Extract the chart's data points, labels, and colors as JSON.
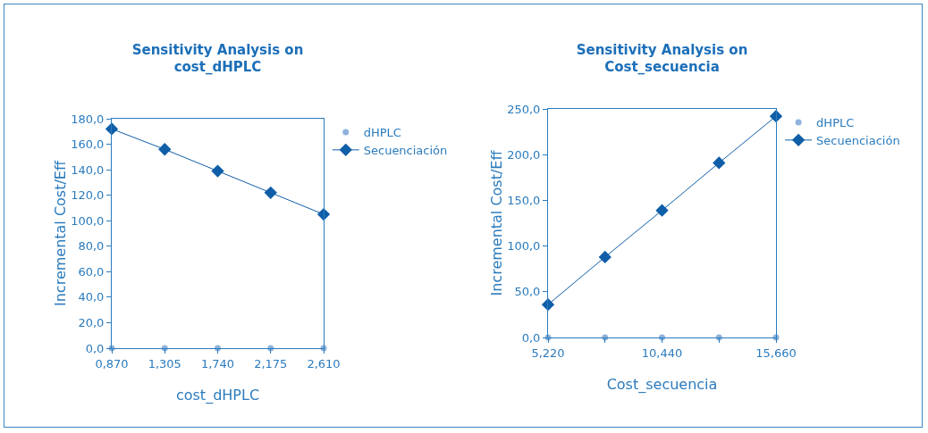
{
  "chart_data": [
    {
      "type": "line",
      "title": "Sensitivity Analysis on\ncost_dHPLC",
      "xlabel": "cost_dHPLC",
      "ylabel": "Incremental Cost/Eff",
      "x": [
        0.87,
        1.305,
        1.74,
        2.175,
        2.61
      ],
      "series": [
        {
          "name": "dHPLC",
          "type": "scatter",
          "marker": "circle",
          "color": "#8fb3dc",
          "values": [
            0,
            0,
            0,
            0,
            0
          ]
        },
        {
          "name": "Secuenciación",
          "marker": "diamond",
          "color": "#0f5ea8",
          "values": [
            172,
            156,
            139,
            122,
            105
          ]
        }
      ],
      "xlim": [
        0.87,
        2.61
      ],
      "xticks": [
        {
          "value": 0.87,
          "label": "0,870"
        },
        {
          "value": 1.305,
          "label": "1,305"
        },
        {
          "value": 1.74,
          "label": "1,740"
        },
        {
          "value": 2.175,
          "label": "2,175"
        },
        {
          "value": 2.61,
          "label": "2,610"
        }
      ],
      "ylim": [
        0,
        180
      ],
      "yticks": [
        {
          "value": 0,
          "label": "0,0"
        },
        {
          "value": 20,
          "label": "20,0"
        },
        {
          "value": 40,
          "label": "40,0"
        },
        {
          "value": 60,
          "label": "60,0"
        },
        {
          "value": 80,
          "label": "80,0"
        },
        {
          "value": 100,
          "label": "100,0"
        },
        {
          "value": 120,
          "label": "120,0"
        },
        {
          "value": 140,
          "label": "140,0"
        },
        {
          "value": 160,
          "label": "160,0"
        },
        {
          "value": 180,
          "label": "180,0"
        }
      ],
      "grid": false,
      "legend": "top right"
    },
    {
      "type": "line",
      "title": "Sensitivity Analysis on\nCost_secuencia",
      "xlabel": "Cost_secuencia",
      "ylabel": "Incremental Cost/Eff",
      "x": [
        5.22,
        7.83,
        10.44,
        13.05,
        15.66
      ],
      "series": [
        {
          "name": "dHPLC",
          "type": "scatter",
          "marker": "circle",
          "color": "#8fb3dc",
          "values": [
            0,
            0,
            0,
            0,
            0
          ]
        },
        {
          "name": "Secuenciación",
          "marker": "diamond",
          "color": "#0f5ea8",
          "values": [
            36,
            88,
            139,
            191,
            242
          ]
        }
      ],
      "xlim": [
        5.22,
        15.66
      ],
      "xticks": [
        {
          "value": 5.22,
          "label": "5,220"
        },
        {
          "value": 7.83,
          "label": null
        },
        {
          "value": 10.44,
          "label": "10,440"
        },
        {
          "value": 13.05,
          "label": null
        },
        {
          "value": 15.66,
          "label": "15,660"
        }
      ],
      "ylim": [
        0,
        250
      ],
      "yticks": [
        {
          "value": 0,
          "label": "0,0"
        },
        {
          "value": 50,
          "label": "50,0"
        },
        {
          "value": 100,
          "label": "100,0"
        },
        {
          "value": 150,
          "label": "150,0"
        },
        {
          "value": 200,
          "label": "200,0"
        },
        {
          "value": 250,
          "label": "250,0"
        }
      ],
      "grid": false,
      "legend": "top right"
    }
  ]
}
